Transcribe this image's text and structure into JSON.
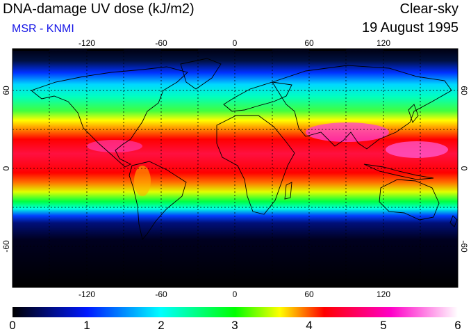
{
  "header": {
    "title": "DNA-damage UV dose (kJ/m2)",
    "credit": "MSR - KNMI",
    "condition": "Clear-sky",
    "date": "19 August 1995"
  },
  "map": {
    "projection": "equirectangular",
    "lon_range": [
      -180,
      180
    ],
    "lat_range": [
      -90,
      90
    ],
    "lon_ticks": [
      "-120",
      "-60",
      "0",
      "60",
      "120"
    ],
    "lat_ticks": [
      "60",
      "0",
      "-60"
    ],
    "gridlines": "dashed",
    "colors": {
      "land_outline": "#000000",
      "gridline": "#000000"
    }
  },
  "colorbar": {
    "labels": [
      "0",
      "1",
      "2",
      "3",
      "4",
      "5",
      "6"
    ],
    "colors": [
      "#000000",
      "#0018ff",
      "#00ffff",
      "#00ff00",
      "#ffff00",
      "#ff0000",
      "#ff00c8",
      "#ffffff"
    ]
  }
}
